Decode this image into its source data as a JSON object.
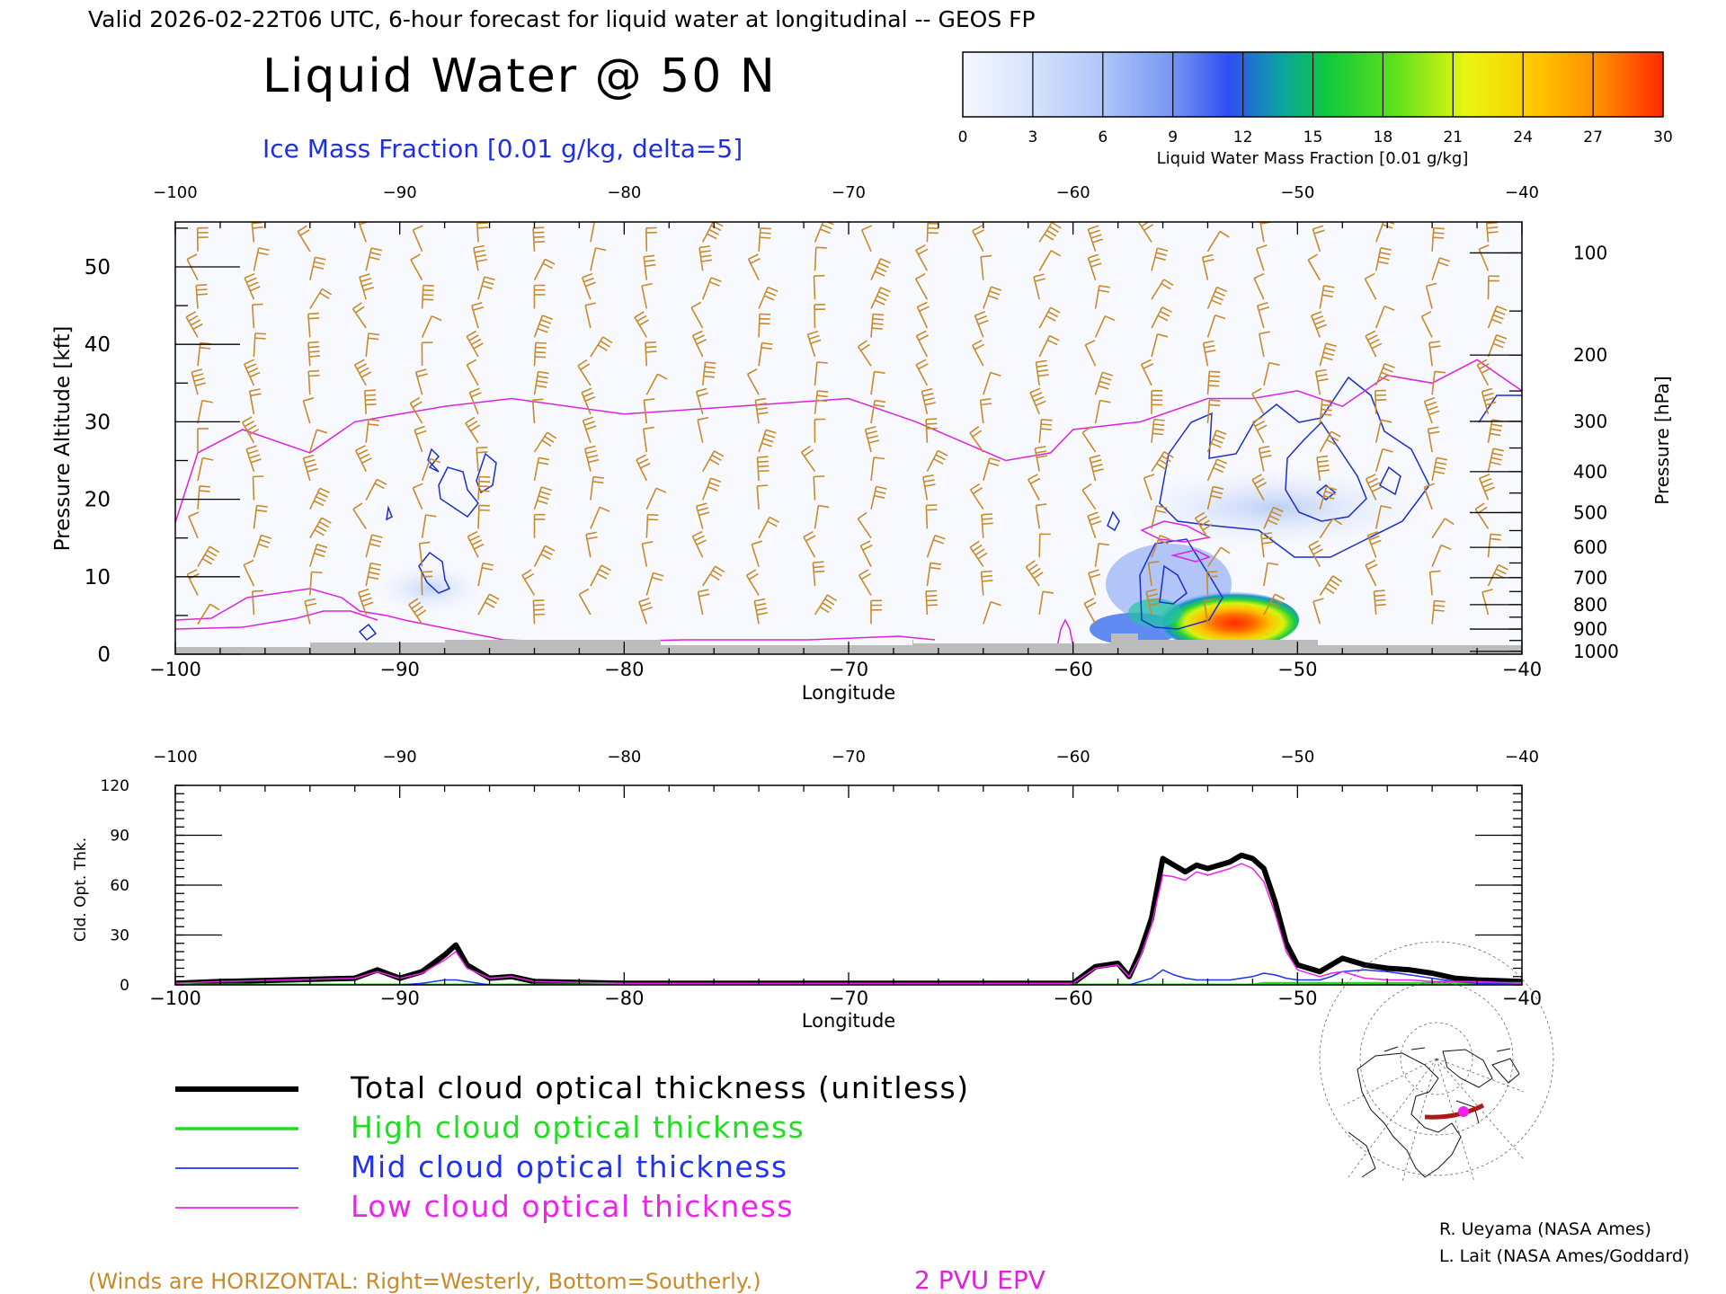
{
  "header": {
    "valid_line": "Valid 2026-02-22T06 UTC, 6-hour forecast for liquid water at longitudinal -- GEOS FP",
    "main_title": "Liquid Water @ 50 N",
    "ice_subtitle": "Ice Mass Fraction [0.01 g/kg, delta=5]"
  },
  "colorbar": {
    "label": "Liquid Water Mass Fraction [0.01 g/kg]",
    "ticks": [
      "0",
      "3",
      "6",
      "9",
      "12",
      "15",
      "18",
      "21",
      "24",
      "27",
      "30"
    ],
    "colors": [
      "#f3f6fd",
      "#c8d8fb",
      "#a4c0f8",
      "#7fa0f3",
      "#3a5cf0",
      "#0f9e9c",
      "#10c830",
      "#7ee81a",
      "#e8f40c",
      "#ffc300",
      "#ff8c00",
      "#ff3a00"
    ]
  },
  "upper_axes": {
    "xlabel": "Longitude",
    "ylabel_left": "Pressure Altitude [kft]",
    "ylabel_right": "Pressure [hPa]",
    "x_ticks": [
      "−100",
      "−90",
      "−80",
      "−70",
      "−60",
      "−50",
      "−40"
    ],
    "left_ticks": [
      "0",
      "10",
      "20",
      "30",
      "40",
      "50"
    ],
    "right_ticks": [
      "100",
      "200",
      "300",
      "400",
      "500",
      "600",
      "700",
      "800",
      "900",
      "1000"
    ]
  },
  "lower_axes": {
    "xlabel": "Longitude",
    "ylabel": "Cld. Opt. Thk.",
    "x_ticks": [
      "−100",
      "−90",
      "−80",
      "−70",
      "−60",
      "−50",
      "−40"
    ],
    "y_ticks": [
      "0",
      "30",
      "60",
      "90",
      "120"
    ]
  },
  "legend": {
    "items": [
      {
        "label": "Total cloud optical thickness (unitless)",
        "color": "#000000"
      },
      {
        "label": "High cloud optical thickness",
        "color": "#22dd22"
      },
      {
        "label": "Mid cloud optical thickness",
        "color": "#2233ee"
      },
      {
        "label": "Low cloud optical thickness",
        "color": "#ee22ee"
      }
    ]
  },
  "footer": {
    "winds_note": "(Winds are HORIZONTAL: Right=Westerly, Bottom=Southerly.)",
    "pvu_label": "2 PVU EPV",
    "credit_1": "R. Ueyama (NASA Ames)",
    "credit_2": "L. Lait (NASA Ames/Goddard)"
  },
  "colors": {
    "wind_barbs": "#c88a2a",
    "epv_line": "#dd22dd",
    "ice_contour": "#1a2ecc",
    "terrain": "#bcbcbc"
  },
  "chart_data": [
    {
      "type": "heatmap",
      "title": "Liquid Water @ 50 N",
      "xlabel": "Longitude",
      "ylabel": "Pressure Altitude [kft]",
      "xlim": [
        -100,
        -40
      ],
      "ylim": [
        0,
        55
      ],
      "colorbar_range": [
        0,
        30
      ],
      "liquid_water_cores": [
        {
          "lon_range": [
            -57.5,
            -51
          ],
          "alt_range_kft": [
            1,
            9
          ],
          "peak_value": 30
        },
        {
          "lon_range": [
            -58,
            -54
          ],
          "alt_range_kft": [
            4,
            14
          ],
          "peak_value": 9
        },
        {
          "lon_range": [
            -56,
            -42
          ],
          "alt_range_kft": [
            12,
            25
          ],
          "peak_value": 3
        }
      ],
      "epv_2pvu_altitude_kft": {
        "lon": [
          -100,
          -99,
          -97,
          -94,
          -92,
          -90,
          -88,
          -85,
          -80,
          -75,
          -70,
          -67,
          -63,
          -61,
          -60,
          -57,
          -54,
          -52,
          -50,
          -48,
          -46,
          -44,
          -42,
          -41,
          -40
        ],
        "alt": [
          17,
          26,
          29,
          26,
          30,
          31,
          32,
          33,
          31,
          32,
          33,
          30,
          25,
          26,
          29,
          30,
          33,
          33,
          34,
          32,
          36,
          35,
          38,
          36,
          34
        ]
      }
    },
    {
      "type": "line",
      "xlabel": "Longitude",
      "ylabel": "Cld. Opt. Thk.",
      "xlim": [
        -100,
        -40
      ],
      "ylim": [
        0,
        120
      ],
      "x": [
        -100,
        -98,
        -95,
        -92,
        -91,
        -90,
        -89,
        -88,
        -87.5,
        -87,
        -86,
        -85,
        -84,
        -80,
        -70,
        -60,
        -59,
        -58,
        -57.5,
        -57,
        -56.5,
        -56,
        -55.5,
        -55,
        -54.5,
        -54,
        -53,
        -52.5,
        -52,
        -51.5,
        -51,
        -50.5,
        -50,
        -49,
        -48.5,
        -48,
        -47,
        -46,
        -45,
        -44,
        -43,
        -42,
        -40
      ],
      "series": [
        {
          "name": "Total cloud optical thickness (unitless)",
          "values": [
            1,
            2,
            3,
            4,
            9,
            4,
            8,
            18,
            24,
            12,
            4,
            5,
            2,
            1,
            1,
            1,
            11,
            13,
            5,
            20,
            40,
            76,
            72,
            68,
            72,
            70,
            74,
            78,
            76,
            70,
            50,
            25,
            12,
            8,
            12,
            16,
            12,
            10,
            9,
            7,
            4,
            3,
            2
          ]
        },
        {
          "name": "High cloud optical thickness",
          "values": [
            0,
            0,
            0,
            0,
            0,
            0,
            0,
            0,
            0,
            0,
            0,
            0,
            0,
            0,
            0,
            0,
            0,
            0,
            0,
            0,
            0,
            0,
            0,
            0,
            0,
            0,
            0,
            0,
            0,
            1,
            1,
            1,
            1,
            1,
            1,
            1,
            1,
            1,
            1,
            1,
            1,
            1,
            1
          ]
        },
        {
          "name": "Mid cloud optical thickness",
          "values": [
            0,
            0,
            0,
            0,
            0,
            0,
            1,
            3,
            3,
            2,
            0,
            0,
            0,
            0,
            0,
            0,
            0,
            0,
            0,
            2,
            4,
            9,
            6,
            4,
            3,
            3,
            3,
            4,
            5,
            7,
            6,
            4,
            3,
            3,
            5,
            8,
            9,
            8,
            6,
            4,
            2,
            1,
            1
          ]
        },
        {
          "name": "Low cloud optical thickness",
          "values": [
            1,
            2,
            3,
            4,
            8,
            4,
            7,
            15,
            20,
            10,
            4,
            5,
            2,
            1,
            1,
            1,
            10,
            12,
            5,
            17,
            36,
            66,
            65,
            63,
            68,
            66,
            70,
            73,
            70,
            62,
            43,
            20,
            9,
            5,
            7,
            8,
            4,
            3,
            3,
            2,
            2,
            2,
            1
          ]
        }
      ]
    }
  ]
}
